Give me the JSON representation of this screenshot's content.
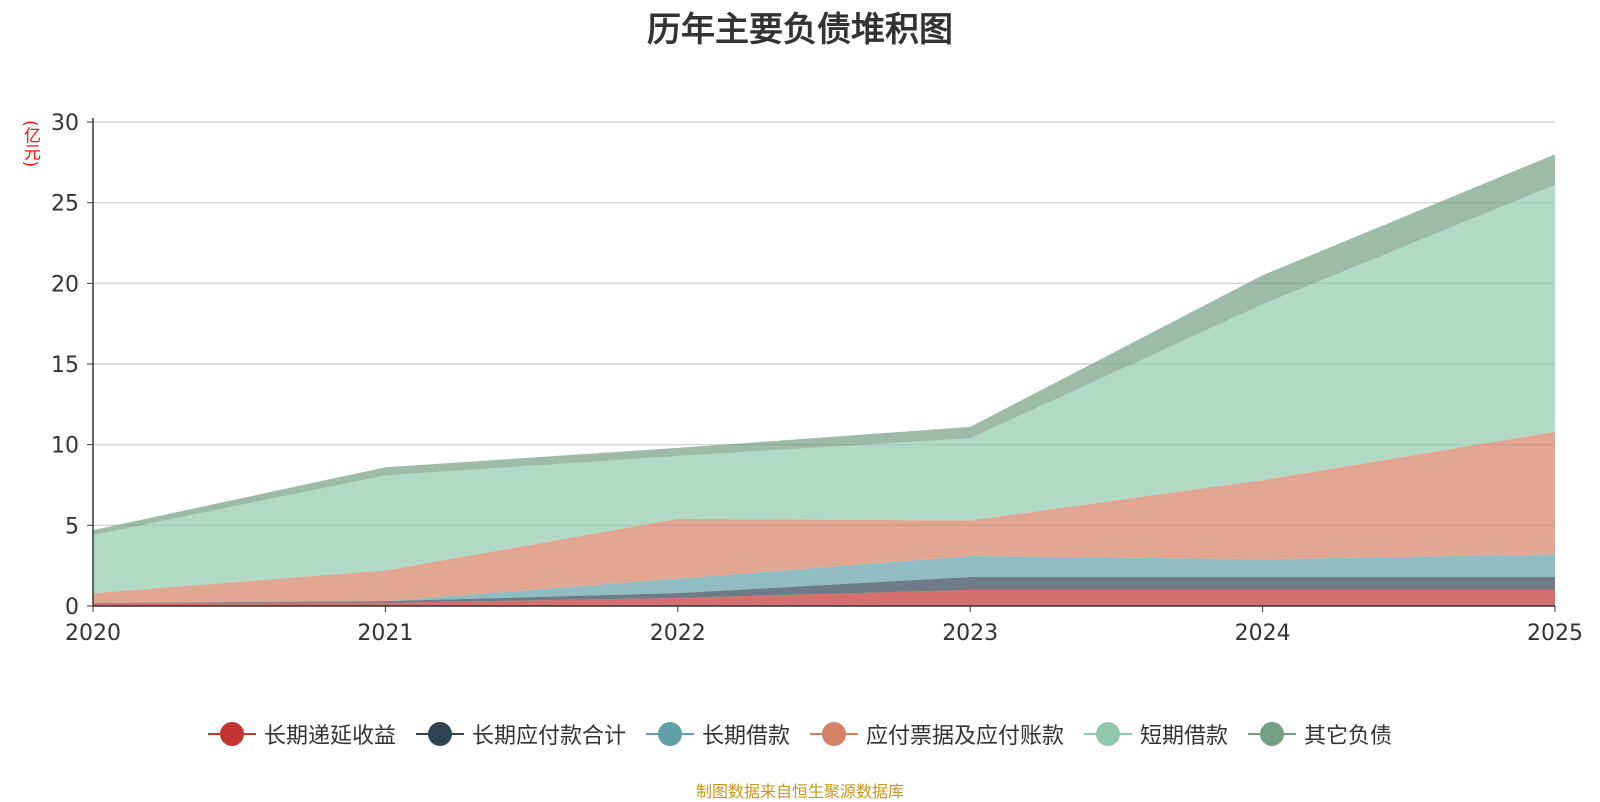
{
  "chart_data": {
    "type": "area",
    "stacked": true,
    "title": "历年主要负债堆积图",
    "ylabel": "(亿元)",
    "x": [
      "2020",
      "2021",
      "2022",
      "2023",
      "2024",
      "2025"
    ],
    "ylim": [
      0,
      30
    ],
    "yticks": [
      "0",
      "5",
      "10",
      "15",
      "20",
      "25",
      "30"
    ],
    "grid": true,
    "legend_position": "bottom",
    "series": [
      {
        "name": "长期递延收益",
        "color": "#c23531",
        "values": [
          0.2,
          0.2,
          0.5,
          1.0,
          1.0,
          1.0
        ]
      },
      {
        "name": "长期应付款合计",
        "color": "#2f4554",
        "values": [
          0.0,
          0.1,
          0.3,
          0.8,
          0.8,
          0.8
        ]
      },
      {
        "name": "长期借款",
        "color": "#61a0a8",
        "values": [
          0.0,
          0.0,
          0.9,
          1.3,
          1.1,
          1.4
        ]
      },
      {
        "name": "应付票据及应付账款",
        "color": "#d48265",
        "values": [
          0.6,
          1.9,
          3.7,
          2.2,
          4.9,
          7.6
        ]
      },
      {
        "name": "短期借款",
        "color": "#91c7ae",
        "values": [
          3.6,
          5.9,
          3.9,
          5.1,
          10.9,
          15.3
        ]
      },
      {
        "name": "其它负债",
        "color": "#749f83",
        "values": [
          0.3,
          0.5,
          0.5,
          0.7,
          1.8,
          1.9
        ]
      }
    ],
    "source": "制图数据来自恒生聚源数据库"
  }
}
